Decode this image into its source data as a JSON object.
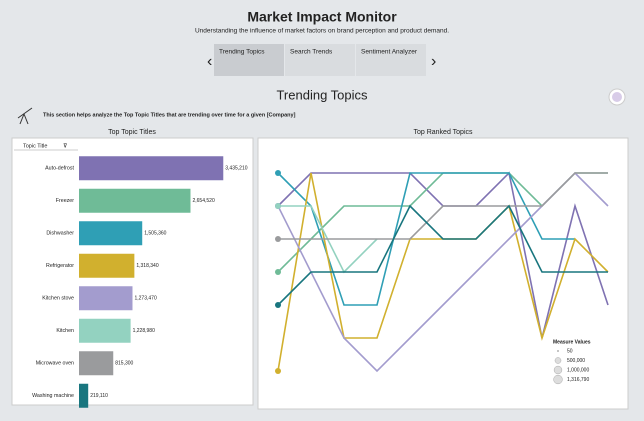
{
  "header": {
    "title": "Market Impact Monitor",
    "subtitle": "Understanding the influence of market factors on brand perception and product demand."
  },
  "tabs": [
    "Trending Topics",
    "Search Trends",
    "Sentiment Analyzer"
  ],
  "section": {
    "title": "Trending Topics",
    "description": "This section helps analyze the Top Topic Titles that are trending over time for a given [Company]"
  },
  "chart_data": [
    {
      "type": "bar",
      "title": "Top Topic Titles",
      "column_header": "Topic Title",
      "categories": [
        "Auto-defrost",
        "Freezer",
        "Dishwasher",
        "Refrigerator",
        "Kitchen stove",
        "Kitchen",
        "Microwave oven",
        "Washing machine"
      ],
      "values": [
        3435210,
        2654520,
        1505360,
        1318340,
        1273470,
        1228980,
        815300,
        219110
      ],
      "value_labels": [
        "3,435,210",
        "2,654,520",
        "1,505,360",
        "1,318,340",
        "1,273,470",
        "1,228,980",
        "815,300",
        "219,110"
      ],
      "colors": [
        "#7f72b2",
        "#6fbb97",
        "#2f9fb5",
        "#d1b02e",
        "#a39cce",
        "#93d2c0",
        "#9a9b9d",
        "#19767f"
      ],
      "xlim": [
        0,
        4000000
      ]
    },
    {
      "type": "line",
      "title": "Top Ranked Topics",
      "ylim": [
        8,
        1
      ],
      "series": [
        {
          "name": "Auto-defrost",
          "color": "#7f72b2",
          "values": [
            2,
            1,
            1,
            1,
            1,
            2,
            2,
            1,
            6,
            2,
            5
          ]
        },
        {
          "name": "Freezer",
          "color": "#6fbb97",
          "values": [
            4,
            3,
            2,
            2,
            2,
            1,
            1,
            1,
            2,
            1,
            1
          ]
        },
        {
          "name": "Dishwasher",
          "color": "#2f9fb5",
          "values": [
            1,
            2,
            5,
            5,
            1,
            1,
            1,
            1,
            3,
            3,
            null
          ]
        },
        {
          "name": "Refrigerator",
          "color": "#d1b02e",
          "values": [
            7,
            1,
            6,
            6,
            3,
            3,
            3,
            2,
            6,
            3,
            4
          ]
        },
        {
          "name": "Kitchen stove",
          "color": "#a39cce",
          "values": [
            2,
            4,
            6,
            7,
            6,
            5,
            4,
            3,
            2,
            1,
            2
          ]
        },
        {
          "name": "Kitchen",
          "color": "#93d2c0",
          "values": [
            2,
            2,
            4,
            3,
            null,
            null,
            null,
            null,
            null,
            null,
            null
          ]
        },
        {
          "name": "Microwave oven",
          "color": "#9a9b9d",
          "values": [
            3,
            3,
            3,
            3,
            3,
            2,
            2,
            2,
            2,
            1,
            1
          ]
        },
        {
          "name": "Washing machine",
          "color": "#19767f",
          "values": [
            5,
            4,
            4,
            4,
            2,
            3,
            3,
            2,
            4,
            4,
            4
          ]
        }
      ],
      "legend": {
        "title": "Measure Values",
        "values": [
          50,
          500000,
          1000000,
          1316790
        ],
        "value_labels": [
          "50",
          "500,000",
          "1,000,000",
          "1,316,790"
        ]
      }
    }
  ]
}
